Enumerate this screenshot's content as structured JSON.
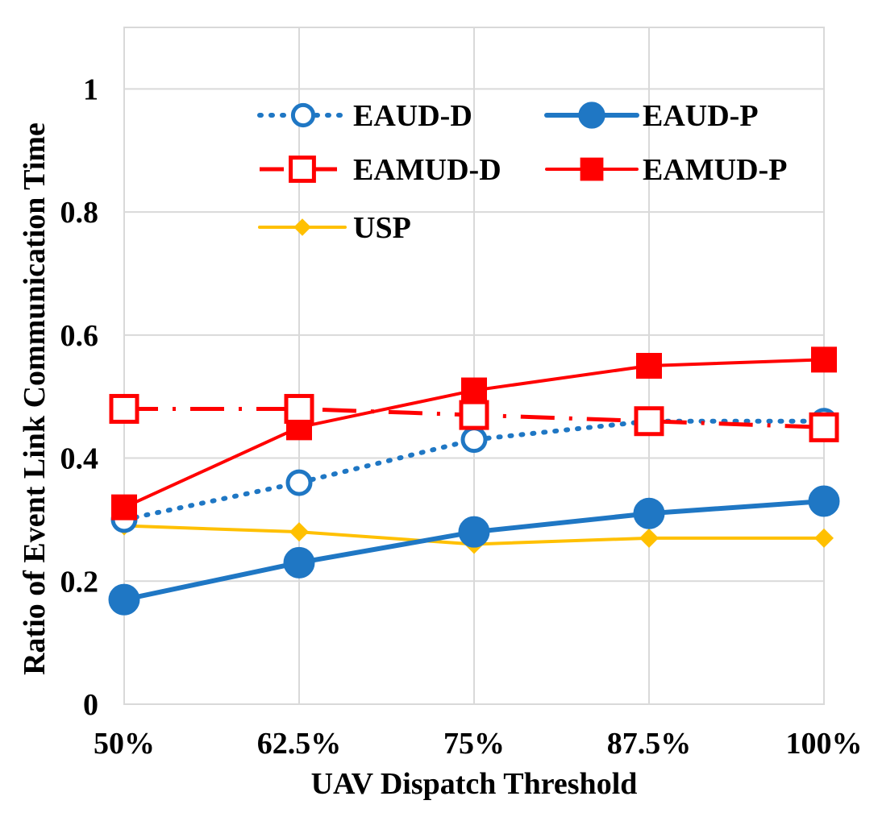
{
  "chart_data": {
    "type": "line",
    "title": "",
    "xlabel": "UAV Dispatch Threshold",
    "ylabel": "Ratio of Event Link Communication Time",
    "categories": [
      "50%",
      "62.5%",
      "75%",
      "87.5%",
      "100%"
    ],
    "ylim": [
      0,
      1.1
    ],
    "yticks": [
      0,
      0.2,
      0.4,
      0.6,
      0.8,
      1
    ],
    "ytick_labels": [
      "0",
      "0.2",
      "0.4",
      "0.6",
      "0.8",
      "1"
    ],
    "grid": true,
    "legend_position": "top-right",
    "series": [
      {
        "name": "EAUD-D",
        "values": [
          0.3,
          0.36,
          0.43,
          0.46,
          0.46
        ],
        "color": "#1f77c4",
        "line": "dotted",
        "marker": "circle-open"
      },
      {
        "name": "EAUD-P",
        "values": [
          0.17,
          0.23,
          0.28,
          0.31,
          0.33
        ],
        "color": "#1f77c4",
        "line": "solid",
        "marker": "circle-filled"
      },
      {
        "name": "EAMUD-D",
        "values": [
          0.48,
          0.48,
          0.47,
          0.46,
          0.45
        ],
        "color": "#ff0000",
        "line": "dashdot",
        "marker": "square-open"
      },
      {
        "name": "EAMUD-P",
        "values": [
          0.32,
          0.45,
          0.51,
          0.55,
          0.56
        ],
        "color": "#ff0000",
        "line": "solid",
        "marker": "square-filled"
      },
      {
        "name": "USP",
        "values": [
          0.29,
          0.28,
          0.26,
          0.27,
          0.27
        ],
        "color": "#ffc000",
        "line": "solid",
        "marker": "diamond-filled"
      }
    ]
  }
}
